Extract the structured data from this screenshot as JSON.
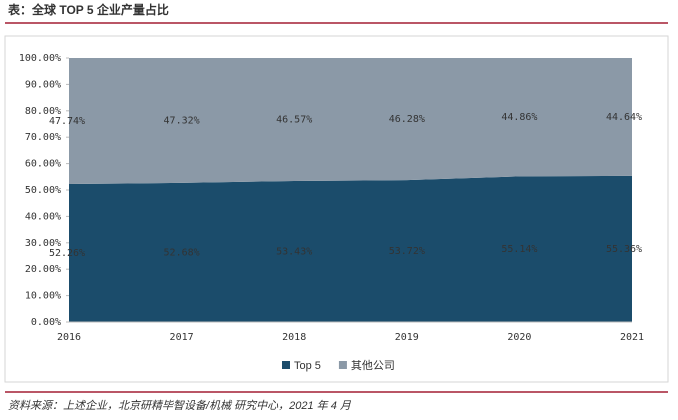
{
  "chart_data": {
    "type": "stacked-area",
    "title": "表：全球 TOP 5 企业产量占比",
    "categories": [
      "2016",
      "2017",
      "2018",
      "2019",
      "2020",
      "2021"
    ],
    "series": [
      {
        "name": "Top 5",
        "color": "#1b4c6b",
        "values": [
          52.26,
          52.68,
          53.43,
          53.72,
          55.14,
          55.36
        ],
        "value_labels": [
          "52.26%",
          "52.68%",
          "53.43%",
          "53.72%",
          "55.14%",
          "55.36%"
        ]
      },
      {
        "name": "其他公司",
        "color": "#8b99a7",
        "values": [
          47.74,
          47.32,
          46.57,
          46.28,
          44.86,
          44.64
        ],
        "value_labels": [
          "47.74%",
          "47.32%",
          "46.57%",
          "46.28%",
          "44.86%",
          "44.64%"
        ]
      }
    ],
    "ylim": [
      0,
      100
    ],
    "yticks": [
      {
        "value": 0,
        "label": "0.00%"
      },
      {
        "value": 10,
        "label": "10.00%"
      },
      {
        "value": 20,
        "label": "20.00%"
      },
      {
        "value": 30,
        "label": "30.00%"
      },
      {
        "value": 40,
        "label": "40.00%"
      },
      {
        "value": 50,
        "label": "50.00%"
      },
      {
        "value": 60,
        "label": "60.00%"
      },
      {
        "value": 70,
        "label": "70.00%"
      },
      {
        "value": 80,
        "label": "80.00%"
      },
      {
        "value": 90,
        "label": "90.00%"
      },
      {
        "value": 100,
        "label": "100.00%"
      }
    ],
    "source": "资料来源：上述企业，北京研精毕智设备/机械 研究中心，2021 年 4 月"
  }
}
